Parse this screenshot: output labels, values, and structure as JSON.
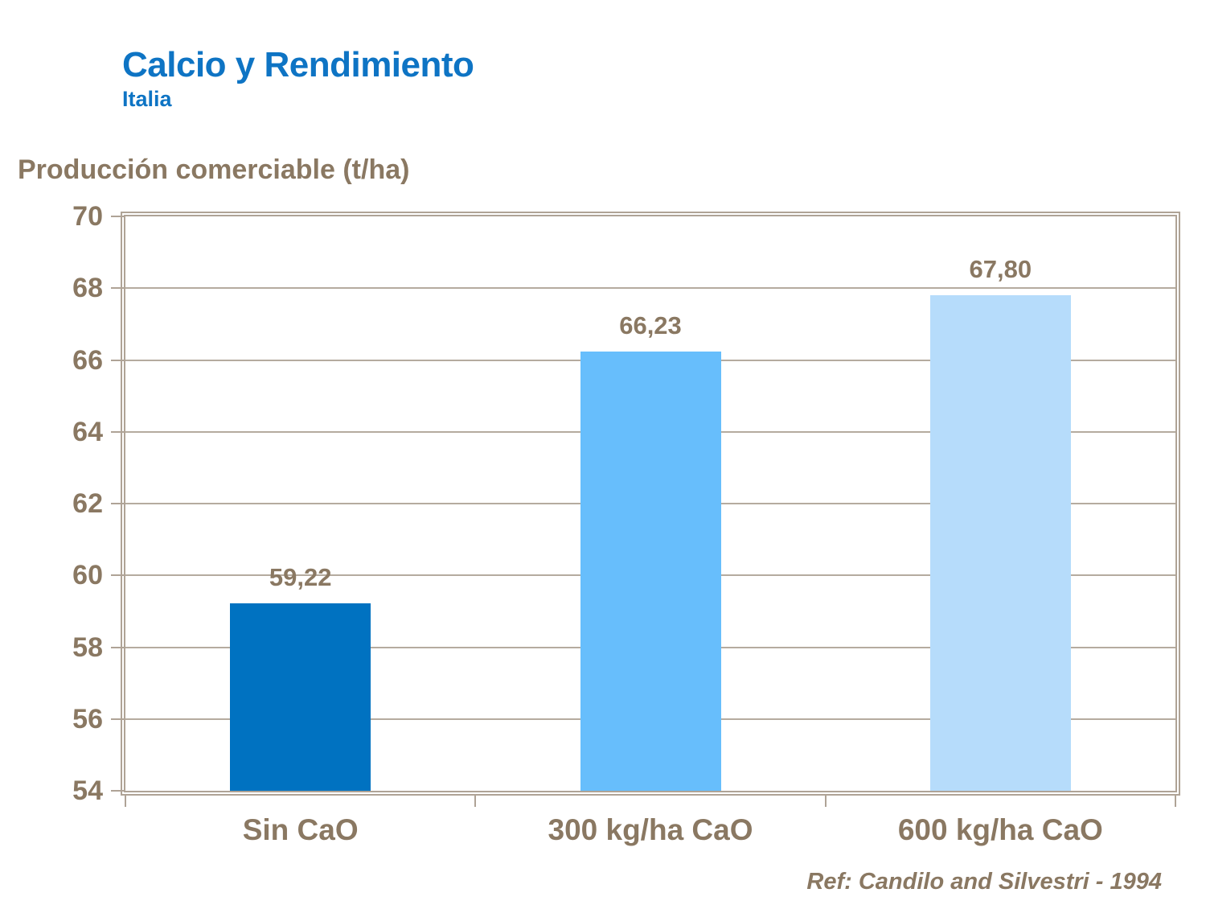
{
  "header": {
    "title": "Calcio y Rendimiento",
    "subtitle": "Italia"
  },
  "axis_title": "Producción comerciable (t/ha)",
  "reference": "Ref: Candilo and Silvestri - 1994",
  "colors": {
    "title_blue": "#0E74C4",
    "chart_text_brown": "#8A7862",
    "frame_tan": "#AFA396",
    "gridline_tan": "#B5AB9F",
    "background": "#FFFFFF"
  },
  "chart_data": {
    "type": "bar",
    "title": "Calcio y Rendimiento - Italia",
    "ylabel": "Producción comerciable (t/ha)",
    "xlabel": "",
    "categories": [
      "Sin CaO",
      "300 kg/ha CaO",
      "600 kg/ha CaO"
    ],
    "values": [
      59.22,
      66.23,
      67.8
    ],
    "value_labels": [
      "59,22",
      "66,23",
      "67,80"
    ],
    "bar_colors": [
      "#0072C1",
      "#67BEFC",
      "#B6DCFB"
    ],
    "ylim": [
      54,
      70
    ],
    "yticks": [
      54,
      56,
      58,
      60,
      62,
      64,
      66,
      68,
      70
    ],
    "grid": true,
    "legend_position": "none"
  }
}
